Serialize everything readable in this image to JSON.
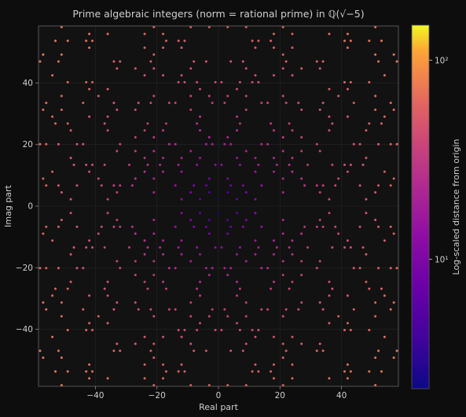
{
  "chart_data": {
    "type": "scatter",
    "title": "Prime algebraic integers (norm = rational prime) in ℚ(√−5)",
    "xlabel": "Real part",
    "ylabel": "Imag part",
    "xlim": [
      -58.5,
      58.5
    ],
    "ylim": [
      -58.5,
      58.5
    ],
    "xticks": [
      -40,
      -20,
      0,
      20,
      40
    ],
    "yticks": [
      -40,
      -20,
      0,
      20,
      40
    ],
    "xtick_labels": [
      "−40",
      "−20",
      "0",
      "20",
      "40"
    ],
    "ytick_labels": [
      "−40",
      "−20",
      "0",
      "20",
      "40"
    ],
    "grid": true,
    "point_rule": "all (a, b·√−5) in the window with a² + 5b² a rational prime",
    "sqrt5": 2.2360679,
    "colorbar": {
      "label": "Log-scaled distance from origin",
      "scale": "log",
      "range": [
        2.236,
        150
      ],
      "colormap": "plasma",
      "ticks": [
        10,
        100
      ],
      "tick_labels": [
        "10¹",
        "10²"
      ]
    },
    "colors": {
      "background": "#0d0d0d",
      "axes_face": "#121212",
      "text": "#cfcfcf",
      "grid": "#262626",
      "spine": "#555555"
    }
  }
}
